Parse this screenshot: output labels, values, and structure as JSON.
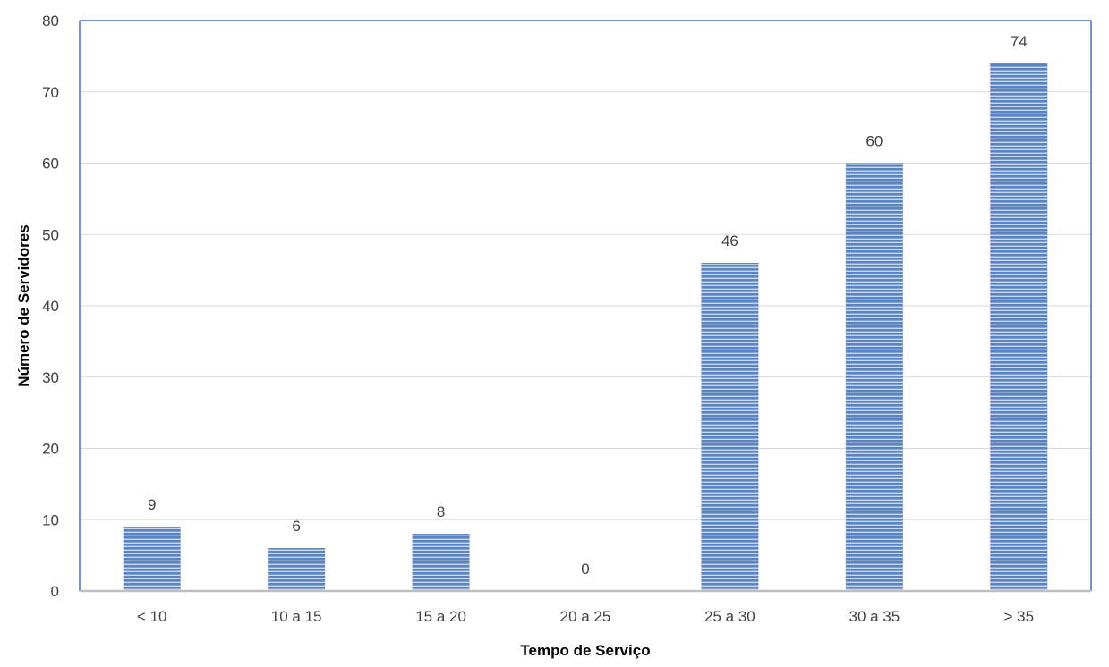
{
  "chart_data": {
    "type": "bar",
    "title": "",
    "xlabel": "Tempo de Serviço",
    "ylabel": "Número de Servidores",
    "categories": [
      "< 10",
      "10 a 15",
      "15 a 20",
      "20 a 25",
      "25 a 30",
      "30 a 35",
      "> 35"
    ],
    "values": [
      9,
      6,
      8,
      0,
      46,
      60,
      74
    ],
    "ylim": [
      0,
      80
    ],
    "yticks": [
      "0",
      "10",
      "20",
      "30",
      "40",
      "50",
      "60",
      "70",
      "80"
    ],
    "grid": true,
    "legend": "none",
    "data_labels": true,
    "colors": {
      "bar_fill": "#5b84c4",
      "bar_stripe": "#c8d6ee",
      "gridline": "#d9d9d9",
      "axis": "#bfbfbf",
      "plot_border": "#4472c4",
      "text": "#404040"
    }
  }
}
